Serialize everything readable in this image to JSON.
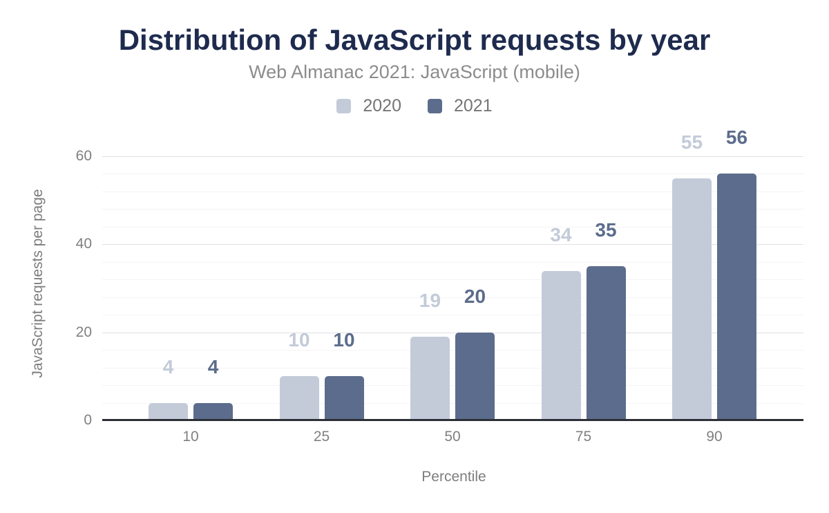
{
  "chart_data": {
    "type": "bar",
    "title": "Distribution of JavaScript requests by year",
    "subtitle": "Web Almanac 2021: JavaScript (mobile)",
    "xlabel": "Percentile",
    "ylabel": "JavaScript requests per page",
    "categories": [
      "10",
      "25",
      "50",
      "75",
      "90"
    ],
    "series": [
      {
        "name": "2020",
        "color": "#c3cbd9",
        "values": [
          4,
          10,
          19,
          34,
          55
        ]
      },
      {
        "name": "2021",
        "color": "#5c6c8c",
        "values": [
          4,
          10,
          20,
          35,
          56
        ]
      }
    ],
    "ylim": [
      0,
      60
    ],
    "yticks": [
      0,
      20,
      40,
      60
    ],
    "y_minor_step": 4,
    "grid": true,
    "legend_position": "top",
    "value_labels": true
  },
  "colors": {
    "title": "#1e2b4e",
    "subtitle": "#8c8c8c",
    "axis_line": "#2d2f36",
    "tick_label": "#808080",
    "axis_title": "#7d7d7d",
    "legend_label": "#757575",
    "gridline_major": "#e0e0e4",
    "gridline_minor": "#f4f4f6"
  }
}
